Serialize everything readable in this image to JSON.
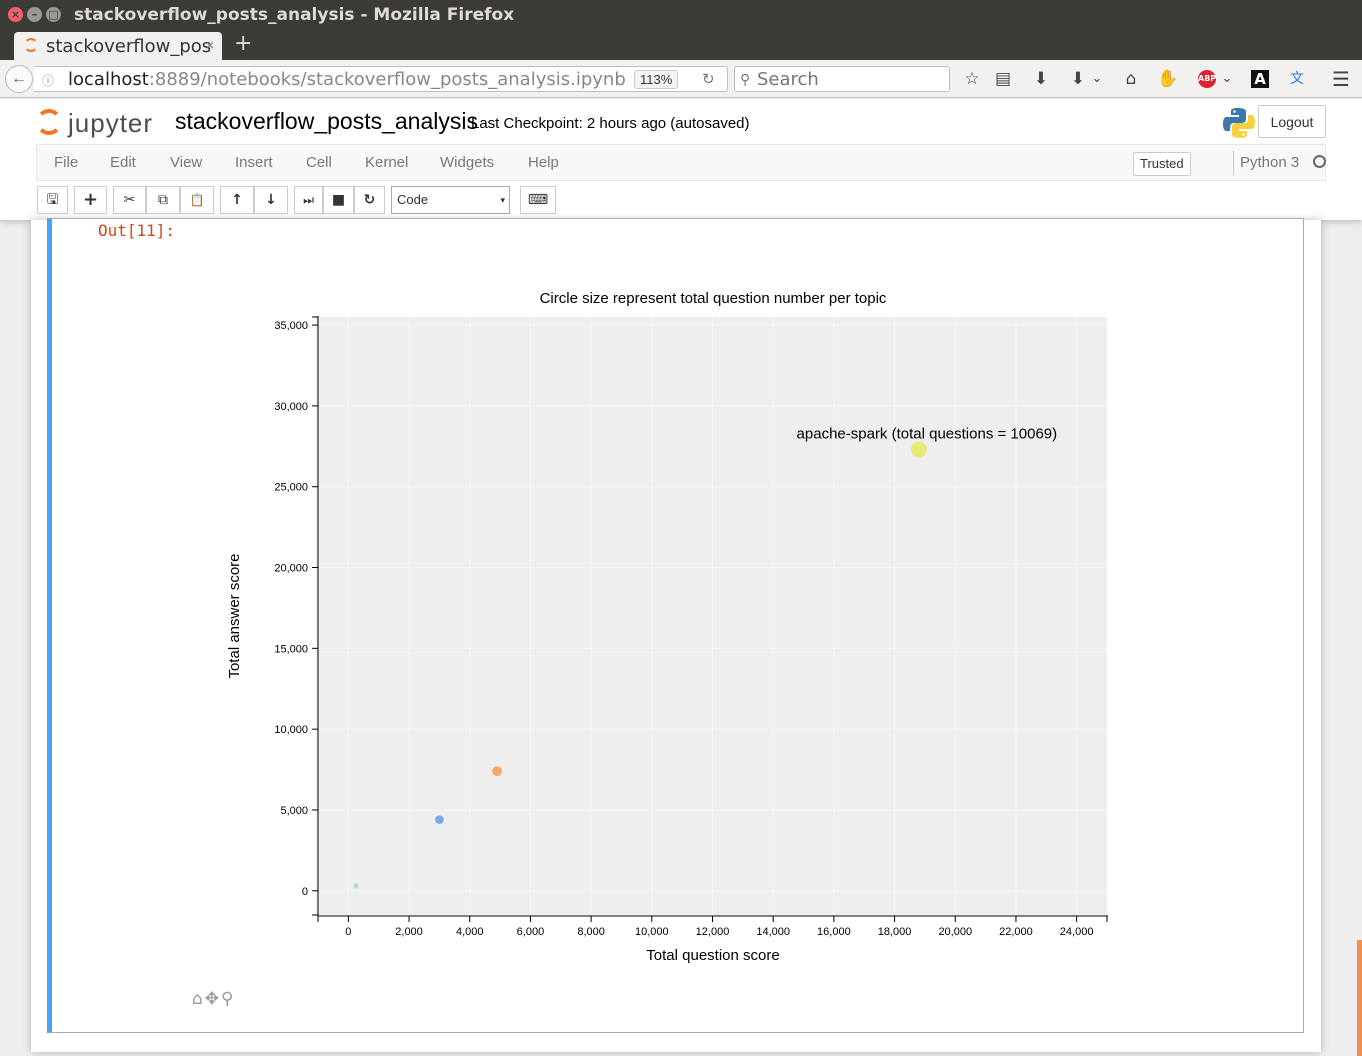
{
  "window": {
    "title": "stackoverflow_posts_analysis - Mozilla Firefox",
    "close_glyph": "×",
    "min_glyph": "–",
    "max_glyph": "□"
  },
  "browser": {
    "tab_title": "stackoverflow_posts_analysis - Jupyter Notebook",
    "tab_close": "×",
    "new_tab": "+",
    "back": "←",
    "url_host": "localhost",
    "url_rest": ":8889/notebooks/stackoverflow_posts_analysis.ipynb",
    "zoom": "113%",
    "reload": "↻",
    "search_placeholder": "Search",
    "icons": {
      "star": "☆",
      "reader": "▤",
      "download": "⬇",
      "pocket": "⬇",
      "dropdown": "⌄",
      "home": "⌂",
      "hand": "✋",
      "abp": "ABP",
      "abp_dropdown": "⌄",
      "accessibility": "A",
      "translate": "文",
      "menu": "☰"
    }
  },
  "jupyter": {
    "logo_text": "jupyter",
    "notebook_name": "stackoverflow_posts_analysis",
    "checkpoint": "Last Checkpoint: 2 hours ago (autosaved)",
    "logout": "Logout",
    "menu": [
      "File",
      "Edit",
      "View",
      "Insert",
      "Cell",
      "Kernel",
      "Widgets",
      "Help"
    ],
    "trusted": "Trusted",
    "kernel": "Python 3",
    "cell_type": "Code",
    "toolbar": {
      "save": "🖫",
      "add": "+",
      "cut": "✂",
      "copy": "⧉",
      "paste": "📋",
      "up": "↑",
      "down": "↓",
      "run": "⏭",
      "stop": "■",
      "restart": "↻",
      "keyboard": "⌨",
      "select_arrow": "▾"
    }
  },
  "cell": {
    "prompt": "Out[11]:",
    "tools": {
      "home": "⌂",
      "pan": "✥",
      "zoom": "⚲"
    }
  },
  "colors": {
    "spark": "#e8e86a",
    "orange": "#f5a05a",
    "blue": "#6aa0ea",
    "green": "#9bd9c0",
    "plot_bg": "#eeeeee"
  },
  "chart_data": {
    "type": "scatter",
    "title": "Circle size represent total question number per topic",
    "xlabel": "Total question score",
    "ylabel": "Total answer score",
    "xlim": [
      -1000,
      25000
    ],
    "ylim": [
      -1500,
      35500
    ],
    "xticks": [
      0,
      2000,
      4000,
      6000,
      8000,
      10000,
      12000,
      14000,
      16000,
      18000,
      20000,
      22000,
      24000
    ],
    "xtick_labels": [
      "0",
      "2,000",
      "4,000",
      "6,000",
      "8,000",
      "10,000",
      "12,000",
      "14,000",
      "16,000",
      "18,000",
      "20,000",
      "22,000",
      "24,000"
    ],
    "yticks": [
      0,
      5000,
      10000,
      15000,
      20000,
      25000,
      30000,
      35000
    ],
    "ytick_labels": [
      "0",
      "5,000",
      "10,000",
      "15,000",
      "20,000",
      "25,000",
      "30,000",
      "35,000"
    ],
    "points": [
      {
        "x": 18800,
        "y": 27300,
        "size": 10069,
        "color_key": "spark"
      },
      {
        "x": 4900,
        "y": 7400,
        "size": 2800,
        "color_key": "orange"
      },
      {
        "x": 3000,
        "y": 4400,
        "size": 1900,
        "color_key": "blue"
      },
      {
        "x": 250,
        "y": 300,
        "size": 200,
        "color_key": "green"
      }
    ],
    "annotation": {
      "text": "apache-spark (total questions = 10069)",
      "x": 18800,
      "y": 27300
    }
  }
}
